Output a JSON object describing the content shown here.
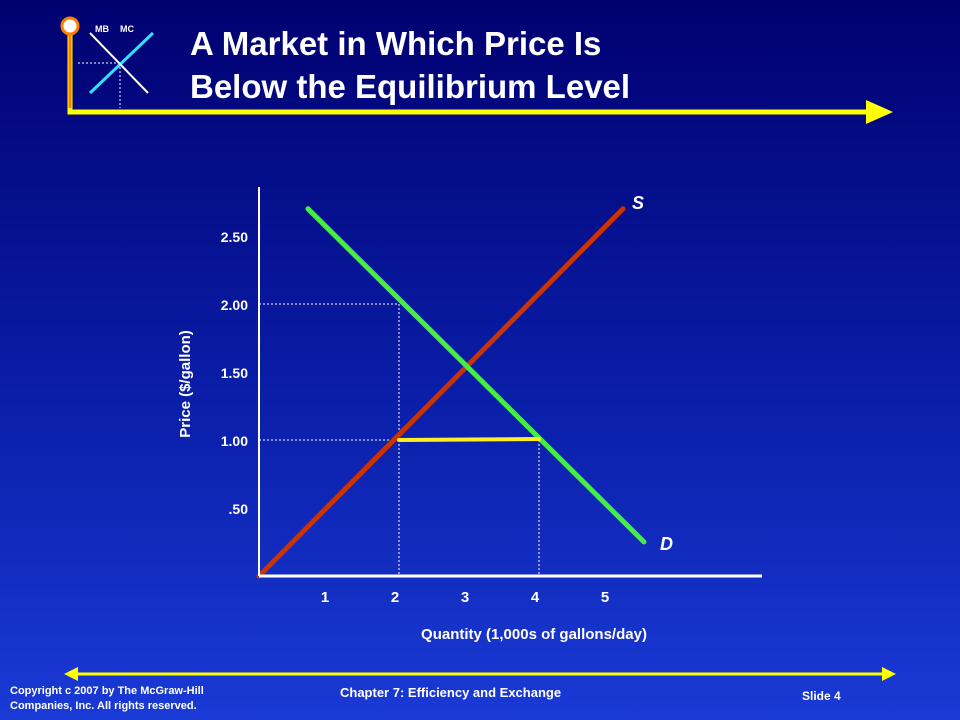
{
  "slide": {
    "title_line1": "A Market in Which Price Is",
    "title_line2": "Below the Equilibrium Level",
    "logo_label_mb": "MB",
    "logo_label_mc": "MC",
    "copyright_line1": "Copyright c 2007 by The McGraw-Hill",
    "copyright_line2": "Companies, Inc. All rights reserved.",
    "chapter": "Chapter 7: Efficiency and Exchange",
    "slide_number": "Slide 4",
    "colors": {
      "accent_yellow": "#ffff00",
      "logo_orange": "#ff8000",
      "logo_cyan": "#33e0ff",
      "supply": "#cc3300",
      "demand": "#44ee44",
      "shortage": "#ffee22"
    }
  },
  "chart_data": {
    "type": "line",
    "title": "",
    "xlabel": "Quantity (1,000s of gallons/day)",
    "ylabel": "Price ($/gallon)",
    "xlim": [
      0,
      6
    ],
    "ylim": [
      0,
      2.85
    ],
    "x_ticks": [
      1,
      2,
      3,
      4,
      5
    ],
    "x_tick_labels": [
      "1",
      "2",
      "3",
      "4",
      "5"
    ],
    "y_ticks": [
      0.5,
      1.0,
      1.5,
      2.0,
      2.5
    ],
    "y_tick_labels": [
      ".50",
      "1.00",
      "1.50",
      "2.00",
      "2.50"
    ],
    "grid": false,
    "series": [
      {
        "name": "S",
        "color": "#cc3300",
        "x": [
          0,
          5.2
        ],
        "y": [
          0,
          2.7
        ]
      },
      {
        "name": "D",
        "color": "#44ee44",
        "x": [
          0.7,
          5.5
        ],
        "y": [
          2.7,
          0.25
        ]
      }
    ],
    "shortage": {
      "price": 1.0,
      "quantity_supplied": 2,
      "quantity_demanded": 4,
      "color": "#ffee22"
    },
    "reference_lines": [
      {
        "price": 2.0,
        "quantity": 2
      },
      {
        "price": 1.0,
        "quantity": 4
      }
    ]
  }
}
